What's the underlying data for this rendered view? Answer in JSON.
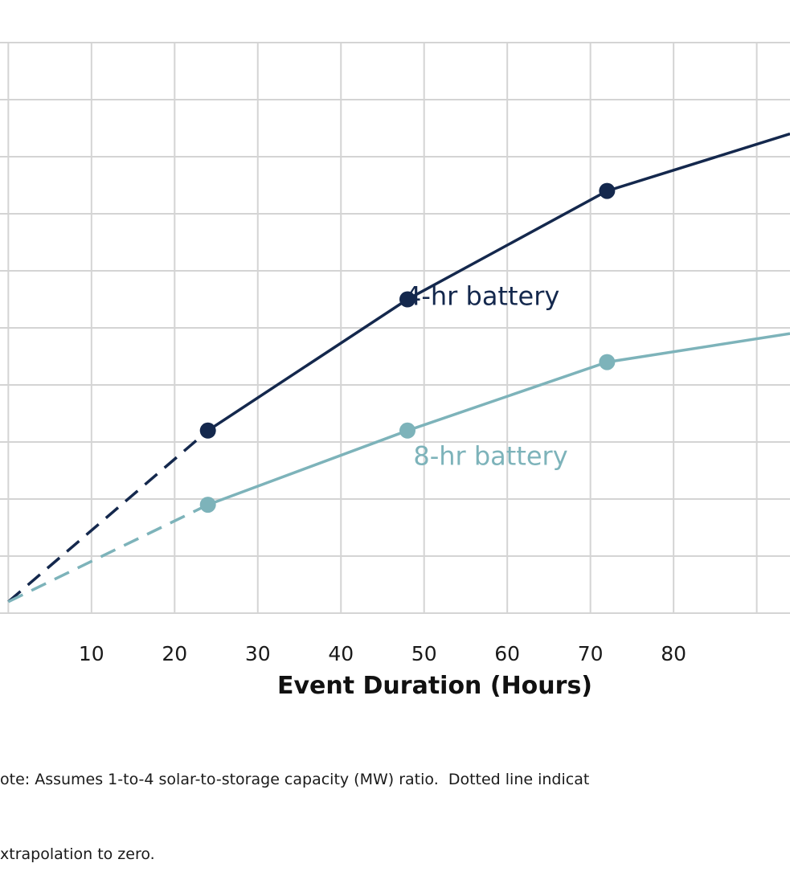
{
  "chart_data": {
    "type": "line",
    "title": "",
    "xlabel": "Event Duration (Hours)",
    "ylabel": "",
    "xlim": [
      -1,
      94
    ],
    "ylim": [
      0,
      10
    ],
    "x_ticks": [
      10,
      20,
      30,
      40,
      50,
      60,
      70,
      80
    ],
    "grid": true,
    "series": [
      {
        "name": "4-hr battery",
        "color": "#14284d",
        "x": [
          24,
          48,
          72,
          94
        ],
        "y": [
          3.2,
          5.5,
          7.4,
          8.4
        ],
        "extrapolated": {
          "x": [
            0,
            24
          ],
          "y": [
            0.2,
            3.2
          ],
          "style": "dashed"
        }
      },
      {
        "name": "8-hr battery",
        "color": "#7db3ba",
        "x": [
          24,
          48,
          72,
          94
        ],
        "y": [
          1.9,
          3.2,
          4.4,
          4.9
        ],
        "extrapolated": {
          "x": [
            0,
            24
          ],
          "y": [
            0.2,
            1.9
          ],
          "style": "dashed"
        }
      }
    ]
  },
  "note": {
    "line1": "ote: Assumes 1-to-4 solar-to-storage capacity (MW) ratio.  Dotted line indicat",
    "line2": "xtrapolation to zero."
  }
}
